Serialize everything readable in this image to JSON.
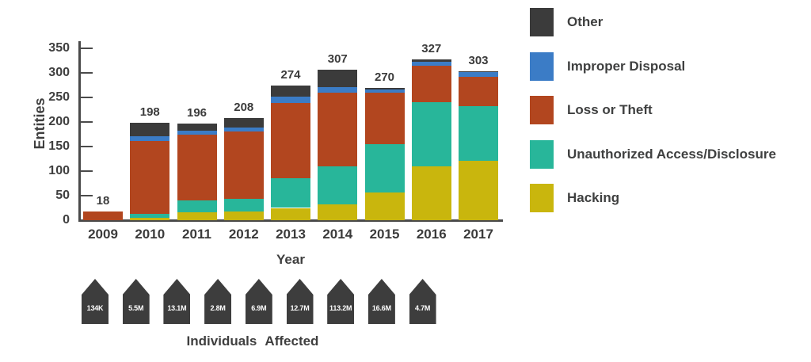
{
  "chart_data": {
    "type": "bar",
    "stacked": true,
    "title": "",
    "xlabel": "Year",
    "ylabel": "Entities",
    "ylim": [
      0,
      350
    ],
    "ytick_step": 50,
    "grid": false,
    "legend_position": "right",
    "categories": [
      "2009",
      "2010",
      "2011",
      "2012",
      "2013",
      "2014",
      "2015",
      "2016",
      "2017"
    ],
    "totals": [
      18,
      198,
      196,
      208,
      274,
      307,
      270,
      327,
      303
    ],
    "series_bottom_up": [
      {
        "name": "Hacking",
        "color": "#c9b60d",
        "values": [
          0,
          5,
          16,
          17,
          25,
          33,
          57,
          110,
          121
        ]
      },
      {
        "name": "Unauthorized Access/Disclosure",
        "color": "#28b69a",
        "values": [
          0,
          8,
          25,
          27,
          60,
          77,
          98,
          130,
          111
        ]
      },
      {
        "name": "Loss or Theft",
        "color": "#b2461f",
        "values": [
          18,
          148,
          133,
          137,
          153,
          150,
          105,
          75,
          60
        ]
      },
      {
        "name": "Improper Disposal",
        "color": "#3b7cc6",
        "values": [
          0,
          10,
          9,
          7,
          13,
          11,
          6,
          7,
          9
        ]
      },
      {
        "name": "Other",
        "color": "#3b3b3b",
        "values": [
          0,
          27,
          13,
          20,
          23,
          36,
          4,
          5,
          2
        ]
      }
    ],
    "legend": [
      {
        "label": "Other",
        "color": "#3b3b3b"
      },
      {
        "label": "Improper Disposal",
        "color": "#3b7cc6"
      },
      {
        "label": "Loss or Theft",
        "color": "#b2461f"
      },
      {
        "label": "Unauthorized Access/Disclosure",
        "color": "#28b69a"
      },
      {
        "label": "Hacking",
        "color": "#c9b60d"
      }
    ],
    "footer": {
      "label": "Individuals Affected",
      "badges": [
        "134K",
        "5.5M",
        "13.1M",
        "2.8M",
        "6.9M",
        "12.7M",
        "113.2M",
        "16.6M",
        "4.7M"
      ],
      "badge_color": "#3d3d3d"
    },
    "axis_color": "#4a4a4a",
    "text_color": "#3f3f3f"
  }
}
